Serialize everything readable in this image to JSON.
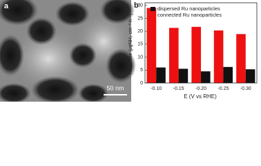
{
  "panel_a": {
    "label": "a",
    "scale_bar": "50 nm"
  },
  "chart_data": {
    "type": "bar",
    "panel_label": "b",
    "x_label": "E (V vs RHE)",
    "y_label": "Yield Rate (μgNH₃ cm⁻²·h⁻¹)",
    "categories": [
      "-0.10",
      "-0.15",
      "-0.20",
      "-0.25",
      "-0.30"
    ],
    "series": [
      {
        "name": "dispersed Ru nanoparticles",
        "color": "#111111",
        "values": [
          6,
          5.5,
          4.5,
          6.2,
          5.3
        ]
      },
      {
        "name": "connected Ru nanoparticles",
        "color": "#ee1111",
        "values": [
          29,
          21.3,
          21.7,
          20.3,
          18.9
        ]
      }
    ],
    "ylim": [
      0,
      31
    ],
    "yticks": [
      0,
      5,
      10,
      15,
      20,
      25,
      30
    ],
    "legend": "top"
  }
}
